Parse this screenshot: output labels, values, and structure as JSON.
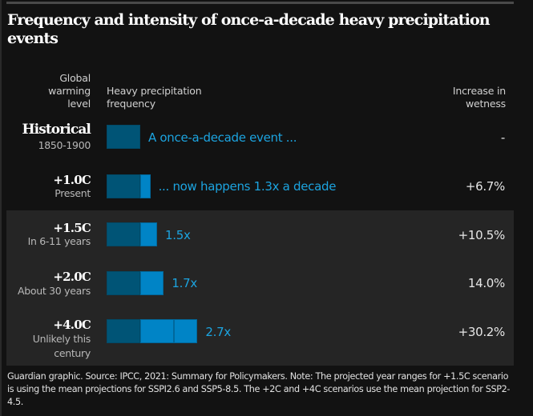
{
  "title": "Frequency and intensity of once-a-decade heavy precipitation events",
  "headers": {
    "level": [
      "Global",
      "warming",
      "level"
    ],
    "frequency": [
      "Heavy precipitation",
      "frequency"
    ],
    "wetness": [
      "Increase in",
      "wetness"
    ]
  },
  "colors": {
    "background": "#121212",
    "highlight_band": "#252525",
    "base_bar": "#005476",
    "extra_bar": "#0084c6",
    "label_blue": "#1ca4e0"
  },
  "rows": [
    {
      "level": "Historical",
      "sub": [
        "1850-1900"
      ],
      "label": "A once-a-decade event ...",
      "wetness": "-"
    },
    {
      "level": "+1.0C",
      "sub": [
        "Present"
      ],
      "label": "... now happens 1.3x a decade",
      "wetness": "+6.7%"
    },
    {
      "level": "+1.5C",
      "sub": [
        "In 6-11 years"
      ],
      "label": "1.5x",
      "wetness": "+10.5%"
    },
    {
      "level": "+2.0C",
      "sub": [
        "About 30 years"
      ],
      "label": "1.7x",
      "wetness": "14.0%"
    },
    {
      "level": "+4.0C",
      "sub": [
        "Unlikely this",
        "century"
      ],
      "label": "2.7x",
      "wetness": "+30.2%"
    }
  ],
  "chart_data": {
    "type": "bar",
    "title": "Frequency and intensity of once-a-decade heavy precipitation events",
    "categories": [
      "Historical (1850-1900)",
      "+1.0C (Present)",
      "+1.5C (In 6-11 years)",
      "+2.0C (About 30 years)",
      "+4.0C (Unlikely this century)"
    ],
    "series": [
      {
        "name": "Heavy precipitation frequency (times per decade)",
        "values": [
          1.0,
          1.3,
          1.5,
          1.7,
          2.7
        ]
      },
      {
        "name": "Increase in wetness (%)",
        "values": [
          null,
          6.7,
          10.5,
          14.0,
          30.2
        ]
      }
    ],
    "xlabel": "Heavy precipitation frequency",
    "ylabel": "Global warming level",
    "highlighted_categories": [
      "+1.5C",
      "+2.0C",
      "+4.0C"
    ]
  },
  "footer": "Guardian graphic. Source: IPCC, 2021: Summary for Policymakers. Note: The projected year ranges for +1.5C scenario is using the mean projections for SSPI2.6 and SSP5-8.5. The +2C and +4C scenarios use the mean projection for SSP2-4.5."
}
